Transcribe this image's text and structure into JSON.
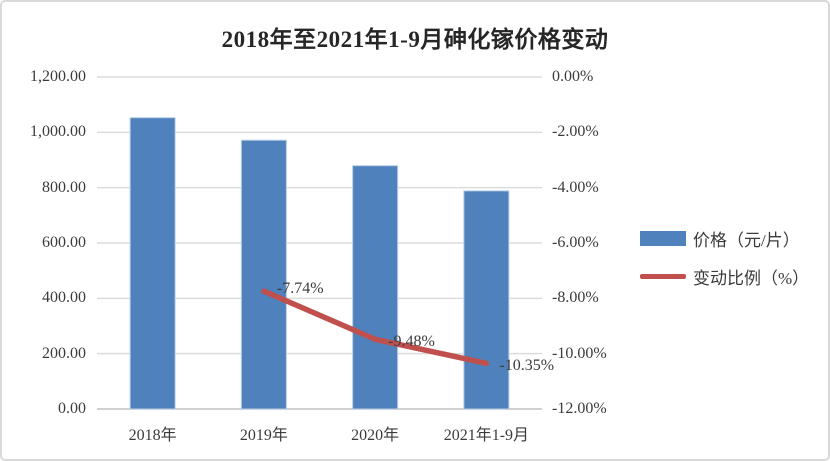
{
  "chart_data": {
    "type": "bar",
    "combo": "bar+line",
    "title": "2018年至2021年1-9月砷化镓价格变动",
    "categories": [
      "2018年",
      "2019年",
      "2020年",
      "2021年1-9月"
    ],
    "series": [
      {
        "name": "价格（元/片）",
        "type": "bar",
        "axis": "left",
        "color": "#4F81BD",
        "edge_color": "#b9cde5",
        "values": [
          1053,
          971.5,
          879.4,
          788.4
        ]
      },
      {
        "name": "变动比例（%）",
        "type": "line",
        "axis": "right",
        "color": "#C0504D",
        "values": [
          null,
          -7.74,
          -9.48,
          -10.35
        ],
        "point_labels": [
          null,
          "-7.74%",
          "-9.48%",
          "-10.35%"
        ]
      }
    ],
    "left_axis": {
      "min": 0,
      "max": 1200,
      "step": 200,
      "tick_labels_top_to_bottom": [
        "1,200.00",
        "1,000.00",
        "800.00",
        "600.00",
        "400.00",
        "200.00",
        "0.00"
      ]
    },
    "right_axis": {
      "min": -12,
      "max": 0,
      "step": 2,
      "tick_labels_top_to_bottom": [
        "0.00%",
        "-2.00%",
        "-4.00%",
        "-6.00%",
        "-8.00%",
        "-10.00%",
        "-12.00%"
      ]
    },
    "grid": true,
    "grid_color": "#dcdcdc",
    "axis_line_color": "#c0c0c0",
    "legend_position": "right"
  }
}
